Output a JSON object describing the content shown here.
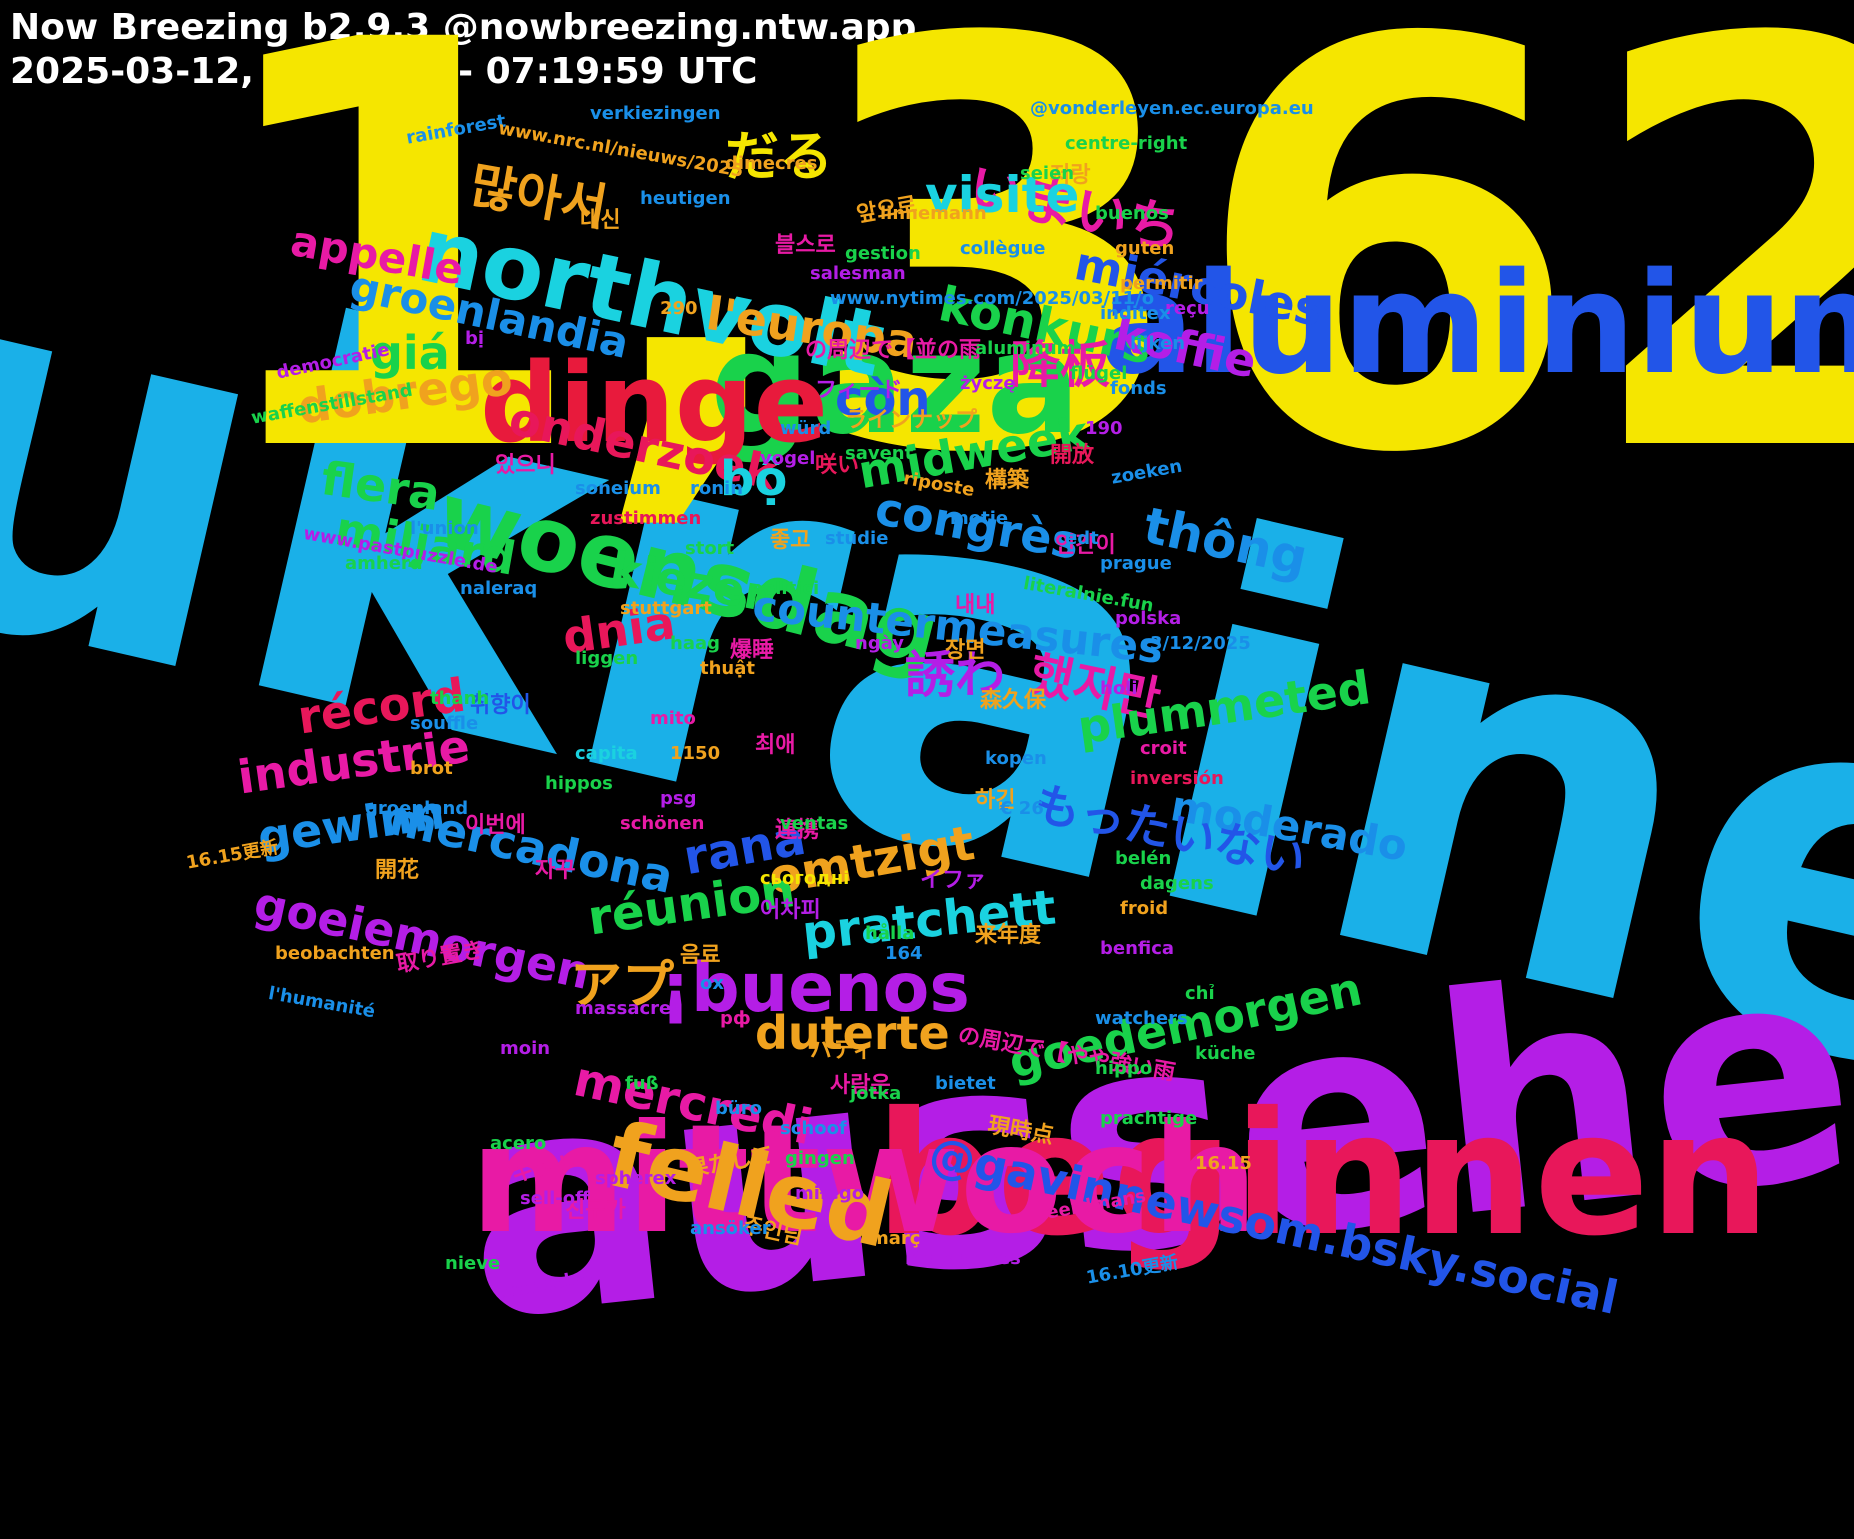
{
  "header": {
    "title": "Now Breezing b2.9.3 @nowbreezing.ntw.app",
    "range": "2025-03-12, 07:10:00 - 07:19:59 UTC"
  },
  "words": [
    {
      "text": "ukraine",
      "color": "#1ab0e8"
    },
    {
      "text": "1,362",
      "color": "#f5e600"
    },
    {
      "text": "aussehen",
      "color": "#b41ee6"
    },
    {
      "text": "beginnen",
      "color": "#e8175a"
    },
    {
      "text": "mittwoch",
      "color": "#e81aa5"
    },
    {
      "text": "aluminium",
      "color": "#2255e8"
    },
    {
      "text": "gaza",
      "color": "#19d24b"
    },
    {
      "text": "dinge",
      "color": "#e81a3c"
    },
    {
      "text": "northvolt",
      "color": "#1ad2e0"
    },
    {
      "text": "woensdag",
      "color": "#19d24b"
    },
    {
      "text": "felled",
      "color": "#f0a21e"
    },
    {
      "text": "¡buenos",
      "color": "#b41ee6"
    },
    {
      "text": "@gavinnewsom.bsky.social",
      "color": "#2255e8"
    },
    {
      "text": "많아서",
      "color": "#f0a21e"
    },
    {
      "text": "だる",
      "color": "#f5e600"
    },
    {
      "text": "いまいち",
      "color": "#e81aa5"
    },
    {
      "text": "groenlandia",
      "color": "#1a8fe8"
    },
    {
      "text": "appelle",
      "color": "#e81aa5"
    },
    {
      "text": "visite",
      "color": "#1ad2e0"
    },
    {
      "text": "miércoles",
      "color": "#2255e8"
    },
    {
      "text": "giá",
      "color": "#19d24b"
    },
    {
      "text": "konkurs",
      "color": "#19d24b"
    },
    {
      "text": "koffie",
      "color": "#b41ee6"
    },
    {
      "text": "l'europa",
      "color": "#f0a21e"
    },
    {
      "text": "降板",
      "color": "#e81aa5"
    },
    {
      "text": "onderzoek",
      "color": "#e8175a"
    },
    {
      "text": "dobrego",
      "color": "#f0a21e"
    },
    {
      "text": "còn",
      "color": "#2255e8"
    },
    {
      "text": "bộ",
      "color": "#1ad2e0"
    },
    {
      "text": "midweek",
      "color": "#19d24b"
    },
    {
      "text": "flera",
      "color": "#19d24b"
    },
    {
      "text": "miljard",
      "color": "#19d24b"
    },
    {
      "text": "congrès",
      "color": "#1a8fe8"
    },
    {
      "text": "thông",
      "color": "#1a8fe8"
    },
    {
      "text": "kiezen",
      "color": "#19d24b"
    },
    {
      "text": "countermeasures",
      "color": "#1a8fe8"
    },
    {
      "text": "dnia",
      "color": "#e8175a"
    },
    {
      "text": "誘わ",
      "color": "#b41ee6"
    },
    {
      "text": "했지만",
      "color": "#e81aa5"
    },
    {
      "text": "plummeted",
      "color": "#19d24b"
    },
    {
      "text": "moderado",
      "color": "#1a8fe8"
    },
    {
      "text": "récord",
      "color": "#e8175a"
    },
    {
      "text": "industrie",
      "color": "#e81aa5"
    },
    {
      "text": "もったいない",
      "color": "#2255e8"
    },
    {
      "text": "gewinn",
      "color": "#1a8fe8"
    },
    {
      "text": "mercadona",
      "color": "#1a8fe8"
    },
    {
      "text": "rana",
      "color": "#2255e8"
    },
    {
      "text": "omtzigt",
      "color": "#f0a21e"
    },
    {
      "text": "pratchett",
      "color": "#1ad2e0"
    },
    {
      "text": "réunion",
      "color": "#19d24b"
    },
    {
      "text": "goeiemorgen",
      "color": "#b41ee6"
    },
    {
      "text": "アプ",
      "color": "#f0a21e"
    },
    {
      "text": "duterte",
      "color": "#f0a21e"
    },
    {
      "text": "goedemorgen",
      "color": "#19d24b"
    },
    {
      "text": "mercredi",
      "color": "#e81aa5"
    },
    {
      "text": "대신",
      "color": "#f0a21e"
    },
    {
      "text": "저랑",
      "color": "#f0a21e"
    },
    {
      "text": "블스로",
      "color": "#e81aa5"
    },
    {
      "text": "앞으로",
      "color": "#f0a21e"
    },
    {
      "text": "の周辺で【並の雨",
      "color": "#e81aa5"
    },
    {
      "text": "フィード",
      "color": "#b41ee6"
    },
    {
      "text": "ラインナップ",
      "color": "#f0a21e"
    },
    {
      "text": "있으니",
      "color": "#e81aa5"
    },
    {
      "text": "咲い",
      "color": "#e8175a"
    },
    {
      "text": "開放",
      "color": "#e8175a"
    },
    {
      "text": "構築",
      "color": "#f0a21e"
    },
    {
      "text": "좋고",
      "color": "#f0a21e"
    },
    {
      "text": "인간이",
      "color": "#e81aa5"
    },
    {
      "text": "내내",
      "color": "#e81aa5"
    },
    {
      "text": "爆睡",
      "color": "#e81aa5"
    },
    {
      "text": "장면",
      "color": "#f0a21e"
    },
    {
      "text": "森久保",
      "color": "#f0a21e"
    },
    {
      "text": "취향이",
      "color": "#2255e8"
    },
    {
      "text": "최애",
      "color": "#e81aa5"
    },
    {
      "text": "하긴",
      "color": "#f0a21e"
    },
    {
      "text": "이번에",
      "color": "#e81aa5"
    },
    {
      "text": "連携",
      "color": "#e81aa5"
    },
    {
      "text": "開花",
      "color": "#f0a21e"
    },
    {
      "text": "자꾸",
      "color": "#e81aa5"
    },
    {
      "text": "イファ",
      "color": "#b41ee6"
    },
    {
      "text": "어차피",
      "color": "#b41ee6"
    },
    {
      "text": "来年度",
      "color": "#f0a21e"
    },
    {
      "text": "음료",
      "color": "#f0a21e"
    },
    {
      "text": "取り置き",
      "color": "#e81aa5"
    },
    {
      "text": "の周辺で【やや強い雨",
      "color": "#e81aa5"
    },
    {
      "text": "バディ",
      "color": "#f0a21e"
    },
    {
      "text": "사람은",
      "color": "#e81aa5"
    },
    {
      "text": "現時点",
      "color": "#f0a21e"
    },
    {
      "text": "キット",
      "color": "#e81aa5"
    },
    {
      "text": "果たして",
      "color": "#f0a21e"
    },
    {
      "text": "친구가",
      "color": "#e81aa5"
    },
    {
      "text": "주인님",
      "color": "#f0a21e"
    },
    {
      "text": "@vonderleyen.ec.europa.eu",
      "color": "#1a8fe8"
    },
    {
      "text": "verkiezingen",
      "color": "#1a8fe8"
    },
    {
      "text": "centre-right",
      "color": "#19d24b"
    },
    {
      "text": "rainforest",
      "color": "#1a8fe8"
    },
    {
      "text": "www.nrc.nl/nieuws/2025",
      "color": "#f0a21e"
    },
    {
      "text": "dimecres",
      "color": "#f0a21e"
    },
    {
      "text": "seien",
      "color": "#19d24b"
    },
    {
      "text": "heutigen",
      "color": "#1a8fe8"
    },
    {
      "text": "buenos",
      "color": "#19d24b"
    },
    {
      "text": "linnemann",
      "color": "#f0a21e"
    },
    {
      "text": "gestion",
      "color": "#19d24b"
    },
    {
      "text": "collègue",
      "color": "#1a8fe8"
    },
    {
      "text": "guten",
      "color": "#f0a21e"
    },
    {
      "text": "salesman",
      "color": "#b41ee6"
    },
    {
      "text": "permitir",
      "color": "#f0a21e"
    },
    {
      "text": "reçu",
      "color": "#b41ee6"
    },
    {
      "text": "inditex",
      "color": "#1a8fe8"
    },
    {
      "text": "www.nytimes.com/2025/03/11/o",
      "color": "#1a8fe8"
    },
    {
      "text": "lijken",
      "color": "#1a8fe8"
    },
    {
      "text": "290",
      "color": "#f0a21e"
    },
    {
      "text": "bị",
      "color": "#b41ee6"
    },
    {
      "text": "aluminum",
      "color": "#19d24b"
    },
    {
      "text": "flügel",
      "color": "#19d24b"
    },
    {
      "text": "democratie",
      "color": "#b41ee6"
    },
    {
      "text": "fonds",
      "color": "#1a8fe8"
    },
    {
      "text": "waffenstillstand",
      "color": "#19d24b"
    },
    {
      "text": "życzę",
      "color": "#b41ee6"
    },
    {
      "text": "würd",
      "color": "#1a8fe8"
    },
    {
      "text": "savent",
      "color": "#19d24b"
    },
    {
      "text": "190",
      "color": "#b41ee6"
    },
    {
      "text": "vogel",
      "color": "#b41ee6"
    },
    {
      "text": "soneium",
      "color": "#1a8fe8"
    },
    {
      "text": "ronin",
      "color": "#1a8fe8"
    },
    {
      "text": "riposte",
      "color": "#f0a21e"
    },
    {
      "text": "zoeken",
      "color": "#1a8fe8"
    },
    {
      "text": "l'union",
      "color": "#1a8fe8"
    },
    {
      "text": "motie",
      "color": "#1a8fe8"
    },
    {
      "text": "www.pastpuzzle.de",
      "color": "#b41ee6"
    },
    {
      "text": "zustimmen",
      "color": "#e8175a"
    },
    {
      "text": "studie",
      "color": "#1a8fe8"
    },
    {
      "text": "edt",
      "color": "#1a8fe8"
    },
    {
      "text": "stort",
      "color": "#19d24b"
    },
    {
      "text": "amherd",
      "color": "#19d24b"
    },
    {
      "text": "prague",
      "color": "#1a8fe8"
    },
    {
      "text": "naleraq",
      "color": "#1a8fe8"
    },
    {
      "text": "politici",
      "color": "#19d24b"
    },
    {
      "text": "literalnie.fun",
      "color": "#19d24b"
    },
    {
      "text": "stuttgart",
      "color": "#f0a21e"
    },
    {
      "text": "polska",
      "color": "#b41ee6"
    },
    {
      "text": "3/12/2025",
      "color": "#1a8fe8"
    },
    {
      "text": "haag",
      "color": "#19d24b"
    },
    {
      "text": "liggen",
      "color": "#19d24b"
    },
    {
      "text": "ngày",
      "color": "#b41ee6"
    },
    {
      "text": "thuật",
      "color": "#f0a21e"
    },
    {
      "text": "thanh",
      "color": "#19d24b"
    },
    {
      "text": "holi",
      "color": "#b41ee6"
    },
    {
      "text": "souffle",
      "color": "#1a8fe8"
    },
    {
      "text": "mito",
      "color": "#e81aa5"
    },
    {
      "text": "capita",
      "color": "#1ad2e0"
    },
    {
      "text": "1150",
      "color": "#f0a21e"
    },
    {
      "text": "croit",
      "color": "#e81aa5"
    },
    {
      "text": "brot",
      "color": "#f0a21e"
    },
    {
      "text": "kopen",
      "color": "#1a8fe8"
    },
    {
      "text": "hippos",
      "color": "#19d24b"
    },
    {
      "text": "inversión",
      "color": "#e8175a"
    },
    {
      "text": "psg",
      "color": "#b41ee6"
    },
    {
      "text": "€ 26",
      "color": "#1a8fe8"
    },
    {
      "text": "groenland",
      "color": "#1a8fe8"
    },
    {
      "text": "schönen",
      "color": "#e81aa5"
    },
    {
      "text": "16.15更新",
      "color": "#f0a21e"
    },
    {
      "text": "ventas",
      "color": "#19d24b"
    },
    {
      "text": "belén",
      "color": "#19d24b"
    },
    {
      "text": "сьогодні",
      "color": "#f5e600"
    },
    {
      "text": "dagens",
      "color": "#19d24b"
    },
    {
      "text": "froid",
      "color": "#f0a21e"
    },
    {
      "text": "hålla",
      "color": "#19d24b"
    },
    {
      "text": "beobachten",
      "color": "#f0a21e"
    },
    {
      "text": "164",
      "color": "#1a8fe8"
    },
    {
      "text": "benfica",
      "color": "#b41ee6"
    },
    {
      "text": "ox",
      "color": "#1a8fe8"
    },
    {
      "text": "chỉ",
      "color": "#19d24b"
    },
    {
      "text": "l'humanité",
      "color": "#1a8fe8"
    },
    {
      "text": "massacres",
      "color": "#b41ee6"
    },
    {
      "text": "рф",
      "color": "#e81aa5"
    },
    {
      "text": "watchers",
      "color": "#1a8fe8"
    },
    {
      "text": "moin",
      "color": "#b41ee6"
    },
    {
      "text": "küche",
      "color": "#19d24b"
    },
    {
      "text": "hippo",
      "color": "#19d24b"
    },
    {
      "text": "fuß",
      "color": "#19d24b"
    },
    {
      "text": "bietet",
      "color": "#1a8fe8"
    },
    {
      "text": "jotka",
      "color": "#19d24b"
    },
    {
      "text": "büro",
      "color": "#1a8fe8"
    },
    {
      "text": "prachtige",
      "color": "#19d24b"
    },
    {
      "text": "schoof",
      "color": "#1a8fe8"
    },
    {
      "text": "acero",
      "color": "#19d24b"
    },
    {
      "text": "gingen",
      "color": "#19d24b"
    },
    {
      "text": "16.15",
      "color": "#f0a21e"
    },
    {
      "text": "spherex",
      "color": "#b41ee6"
    },
    {
      "text": "sell-off",
      "color": "#b41ee6"
    },
    {
      "text": "miłego",
      "color": "#b41ee6"
    },
    {
      "text": "eerdmans",
      "color": "#e81aa5"
    },
    {
      "text": "ansöker",
      "color": "#1a8fe8"
    },
    {
      "text": "març",
      "color": "#f0a21e"
    },
    {
      "text": "législatives",
      "color": "#b41ee6"
    },
    {
      "text": "nieve",
      "color": "#19d24b"
    },
    {
      "text": "16.10更新",
      "color": "#1a8fe8"
    },
    {
      "text": "aranceles",
      "color": "#b41ee6"
    }
  ]
}
